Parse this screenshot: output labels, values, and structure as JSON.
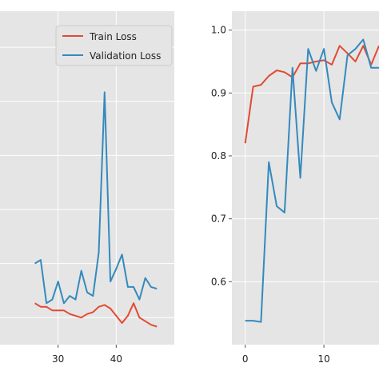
{
  "chart_data": [
    {
      "type": "line",
      "title": "",
      "xlabel": "",
      "ylabel": "",
      "xlim": [
        20,
        50
      ],
      "x_ticks": [
        "30",
        "40"
      ],
      "grid": true,
      "legend": "top-right",
      "legend_entries": [
        "Train Loss",
        "Validation Loss"
      ],
      "series": [
        {
          "name": "Train Loss",
          "color": "#e24a33",
          "x": [
            26,
            27,
            28,
            29,
            30,
            31,
            32,
            33,
            34,
            35,
            36,
            37,
            38,
            39,
            40,
            41,
            42,
            43,
            44,
            45,
            46,
            47
          ],
          "y": [
            0.38,
            0.36,
            0.36,
            0.34,
            0.34,
            0.34,
            0.32,
            0.31,
            0.3,
            0.32,
            0.33,
            0.36,
            0.37,
            0.35,
            0.31,
            0.27,
            0.31,
            0.38,
            0.3,
            0.28,
            0.26,
            0.25
          ]
        },
        {
          "name": "Validation Loss",
          "color": "#348abd",
          "x": [
            26,
            27,
            28,
            29,
            30,
            31,
            32,
            33,
            34,
            35,
            36,
            37,
            38,
            39,
            40,
            41,
            42,
            43,
            44,
            45,
            46,
            47
          ],
          "y": [
            0.6,
            0.62,
            0.38,
            0.4,
            0.5,
            0.38,
            0.42,
            0.4,
            0.56,
            0.44,
            0.42,
            0.66,
            1.55,
            0.5,
            0.57,
            0.65,
            0.47,
            0.47,
            0.4,
            0.52,
            0.47,
            0.46
          ]
        }
      ]
    },
    {
      "type": "line",
      "title": "",
      "xlabel": "",
      "ylabel": "",
      "xlim": [
        -1.7,
        17
      ],
      "ylim": [
        0.5,
        1.03
      ],
      "x_ticks": [
        "0",
        "10"
      ],
      "y_ticks": [
        "0.6",
        "0.7",
        "0.8",
        "0.9",
        "1.0"
      ],
      "grid": true,
      "series": [
        {
          "color": "#e24a33",
          "x": [
            0,
            1,
            2,
            3,
            4,
            5,
            6,
            7,
            8,
            9,
            10,
            11,
            12,
            13,
            14,
            15,
            16,
            17
          ],
          "y": [
            0.82,
            0.91,
            0.913,
            0.927,
            0.936,
            0.933,
            0.925,
            0.947,
            0.947,
            0.95,
            0.952,
            0.945,
            0.975,
            0.963,
            0.95,
            0.975,
            0.945,
            0.975
          ]
        },
        {
          "color": "#348abd",
          "x": [
            0,
            1,
            2,
            3,
            4,
            5,
            6,
            7,
            8,
            9,
            10,
            11,
            12,
            13,
            14,
            15,
            16,
            17
          ],
          "y": [
            0.538,
            0.538,
            0.536,
            0.79,
            0.72,
            0.71,
            0.94,
            0.765,
            0.97,
            0.935,
            0.97,
            0.885,
            0.858,
            0.96,
            0.97,
            0.985,
            0.94,
            0.94
          ]
        }
      ]
    }
  ]
}
